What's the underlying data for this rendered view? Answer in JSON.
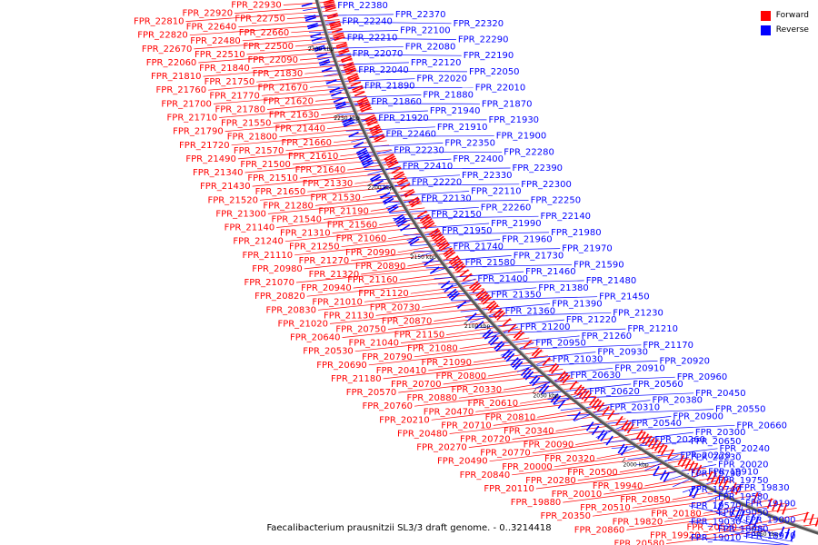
{
  "legend": [
    {
      "label": "Forward",
      "color": "#ff0000"
    },
    {
      "label": "Reverse",
      "color": "#0000ff"
    }
  ],
  "caption": "Faecalibacterium prausnitzii SL3/3 draft genome. - 0..3214418",
  "ticks": [
    "2300 kbp",
    "2250 kbp",
    "2200 kbp",
    "2150 kbp",
    "2100 kbp",
    "2050 kbp",
    "2000 kbp",
    "1950 kbp"
  ],
  "forward_labels": [
    "FPR_22930",
    "FPR_22920",
    "FPR_22810",
    "FPR_22750",
    "FPR_22640",
    "FPR_22820",
    "FPR_22660",
    "FPR_22480",
    "FPR_22670",
    "FPR_22500",
    "FPR_22510",
    "FPR_22060",
    "FPR_22090",
    "FPR_21840",
    "FPR_21810",
    "FPR_21830",
    "FPR_21750",
    "FPR_21760",
    "FPR_21670",
    "FPR_21770",
    "FPR_21700",
    "FPR_21620",
    "FPR_21780",
    "FPR_21710",
    "FPR_21630",
    "FPR_21550",
    "FPR_21790",
    "FPR_21440",
    "FPR_21800",
    "FPR_21720",
    "FPR_21660",
    "FPR_21570",
    "FPR_21490",
    "FPR_21610",
    "FPR_21500",
    "FPR_21340",
    "FPR_21640",
    "FPR_21510",
    "FPR_21430",
    "FPR_21330",
    "FPR_21650",
    "FPR_21520",
    "FPR_21530",
    "FPR_21280",
    "FPR_21300",
    "FPR_21190",
    "FPR_21540",
    "FPR_21140",
    "FPR_21560",
    "FPR_21310",
    "FPR_21240",
    "FPR_21060",
    "FPR_21250",
    "FPR_21110",
    "FPR_20990",
    "FPR_21270",
    "FPR_20980",
    "FPR_20890",
    "FPR_21320",
    "FPR_21070",
    "FPR_21160",
    "FPR_20940",
    "FPR_20820",
    "FPR_21120",
    "FPR_21010",
    "FPR_20830",
    "FPR_20730",
    "FPR_21130",
    "FPR_21020",
    "FPR_20870",
    "FPR_20750",
    "FPR_20640",
    "FPR_21150",
    "FPR_21040",
    "FPR_20530",
    "FPR_21080",
    "FPR_20790",
    "FPR_20690",
    "FPR_21090",
    "FPR_20410",
    "FPR_21180",
    "FPR_20800",
    "FPR_20700",
    "FPR_20570",
    "FPR_20330",
    "FPR_20880",
    "FPR_20760",
    "FPR_20610",
    "FPR_20470",
    "FPR_20210",
    "FPR_20810",
    "FPR_20710",
    "FPR_20480",
    "FPR_20340",
    "FPR_20720",
    "FPR_20270",
    "FPR_20090",
    "FPR_20770",
    "FPR_20490",
    "FPR_20320",
    "FPR_20000",
    "FPR_20840",
    "FPR_20500",
    "FPR_20280",
    "FPR_20110",
    "FPR_19940",
    "FPR_20010",
    "FPR_19880",
    "FPR_20850",
    "FPR_20510",
    "FPR_20350",
    "FPR_20180",
    "FPR_19820",
    "FPR_20860",
    "FPR_20520",
    "FPR_19920",
    "FPR_20580"
  ],
  "reverse_labels": [
    "FPR_22380",
    "FPR_22370",
    "FPR_22320",
    "FPR_22240",
    "FPR_22100",
    "FPR_22290",
    "FPR_22210",
    "FPR_22080",
    "FPR_22190",
    "FPR_22070",
    "FPR_22120",
    "FPR_22050",
    "FPR_22040",
    "FPR_22020",
    "FPR_22010",
    "FPR_21890",
    "FPR_21880",
    "FPR_21870",
    "FPR_21860",
    "FPR_21940",
    "FPR_21930",
    "FPR_21920",
    "FPR_21910",
    "FPR_21900",
    "FPR_22460",
    "FPR_22350",
    "FPR_22280",
    "FPR_22230",
    "FPR_22400",
    "FPR_22390",
    "FPR_22410",
    "FPR_22330",
    "FPR_22300",
    "FPR_22220",
    "FPR_22110",
    "FPR_22250",
    "FPR_22130",
    "FPR_22260",
    "FPR_22140",
    "FPR_22150",
    "FPR_21990",
    "FPR_21980",
    "FPR_21950",
    "FPR_21960",
    "FPR_21970",
    "FPR_21740",
    "FPR_21730",
    "FPR_21590",
    "FPR_21580",
    "FPR_21460",
    "FPR_21480",
    "FPR_21400",
    "FPR_21380",
    "FPR_21450",
    "FPR_21350",
    "FPR_21390",
    "FPR_21230",
    "FPR_21360",
    "FPR_21220",
    "FPR_21210",
    "FPR_21200",
    "FPR_21260",
    "FPR_21170",
    "FPR_20950",
    "FPR_20930",
    "FPR_20920",
    "FPR_21030",
    "FPR_20910",
    "FPR_20960",
    "FPR_20630",
    "FPR_20560",
    "FPR_20450",
    "FPR_20620",
    "FPR_20380",
    "FPR_20550",
    "FPR_20310",
    "FPR_20900",
    "FPR_20660",
    "FPR_20540",
    "FPR_20300",
    "FPR_20650",
    "FPR_20260",
    "FPR_20240",
    "FPR_20230",
    "FPR_20220",
    "FPR_20020",
    "FPR_19790",
    "FPR_19910",
    "FPR_19750",
    "FPR_19740",
    "FPR_19830",
    "FPR_19580",
    "FPR_19570",
    "FPR_19190",
    "FPR_19050",
    "FPR_19030",
    "FPR_19000",
    "FPR_18980",
    "FPR_19010",
    "FPR_18970"
  ]
}
